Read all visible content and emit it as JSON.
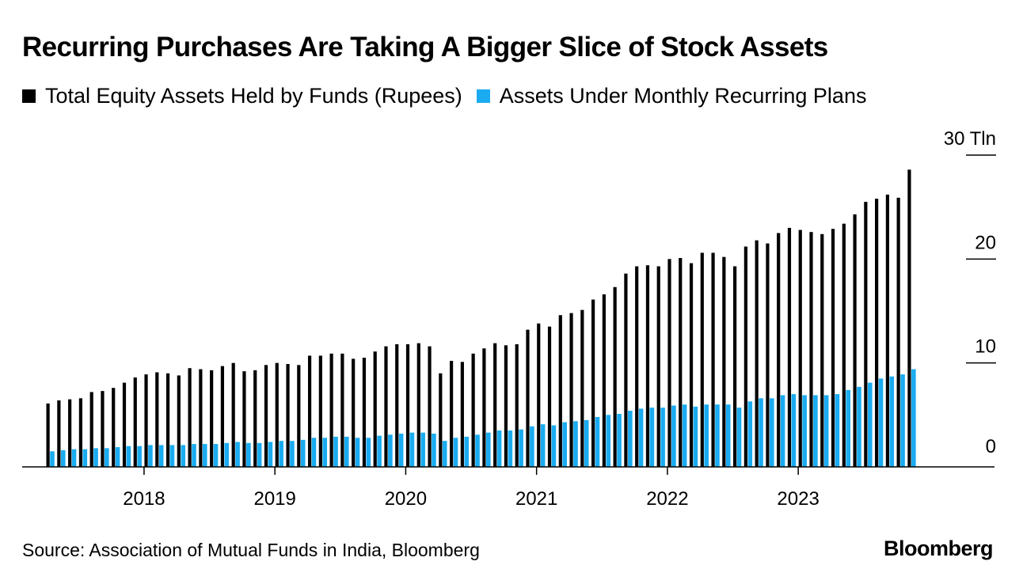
{
  "title": "Recurring Purchases Are Taking A Bigger Slice of Stock Assets",
  "source": "Source: Association of Mutual Funds in India, Bloomberg",
  "brand": "Bloomberg",
  "colors": {
    "total": "#000000",
    "recurring": "#1aabf0",
    "axis": "#000000"
  },
  "chart_data": {
    "type": "bar",
    "title": "Recurring Purchases Are Taking A Bigger Slice of Stock Assets",
    "ylabel": "",
    "y_unit_label": "30 Tln",
    "ylim": [
      0,
      30
    ],
    "y_ticks": [
      {
        "value": 0,
        "label": "0"
      },
      {
        "value": 10,
        "label": "10"
      },
      {
        "value": 20,
        "label": "20"
      },
      {
        "value": 30,
        "label": "30 Tln"
      }
    ],
    "x_ticks": [
      {
        "index": 9,
        "label": "2018"
      },
      {
        "index": 21,
        "label": "2019"
      },
      {
        "index": 33,
        "label": "2020"
      },
      {
        "index": 45,
        "label": "2021"
      },
      {
        "index": 57,
        "label": "2022"
      },
      {
        "index": 69,
        "label": "2023"
      }
    ],
    "grid": false,
    "legend_position": "top-left",
    "categories": [
      "2017-04",
      "2017-05",
      "2017-06",
      "2017-07",
      "2017-08",
      "2017-09",
      "2017-10",
      "2017-11",
      "2017-12",
      "2018-01",
      "2018-02",
      "2018-03",
      "2018-04",
      "2018-05",
      "2018-06",
      "2018-07",
      "2018-08",
      "2018-09",
      "2018-10",
      "2018-11",
      "2018-12",
      "2019-01",
      "2019-02",
      "2019-03",
      "2019-04",
      "2019-05",
      "2019-06",
      "2019-07",
      "2019-08",
      "2019-09",
      "2019-10",
      "2019-11",
      "2019-12",
      "2020-01",
      "2020-02",
      "2020-03",
      "2020-04",
      "2020-05",
      "2020-06",
      "2020-07",
      "2020-08",
      "2020-09",
      "2020-10",
      "2020-11",
      "2020-12",
      "2021-01",
      "2021-02",
      "2021-03",
      "2021-04",
      "2021-05",
      "2021-06",
      "2021-07",
      "2021-08",
      "2021-09",
      "2021-10",
      "2021-11",
      "2021-12",
      "2022-01",
      "2022-02",
      "2022-03",
      "2022-04",
      "2022-05",
      "2022-06",
      "2022-07",
      "2022-08",
      "2022-09",
      "2022-10",
      "2022-11",
      "2022-12",
      "2023-01",
      "2023-02",
      "2023-03",
      "2023-04",
      "2023-05",
      "2023-06",
      "2023-07",
      "2023-08",
      "2023-09",
      "2023-10",
      "2023-11"
    ],
    "series": [
      {
        "name": "Total Equity Assets Held by Funds (Rupees)",
        "color": "#000000",
        "values": [
          6.1,
          6.4,
          6.5,
          6.6,
          7.2,
          7.3,
          7.6,
          8.1,
          8.6,
          8.9,
          9.1,
          9.0,
          8.8,
          9.5,
          9.4,
          9.3,
          9.7,
          10.0,
          9.2,
          9.3,
          9.8,
          10.0,
          9.9,
          9.8,
          10.7,
          10.7,
          10.9,
          10.9,
          10.4,
          10.5,
          11.1,
          11.6,
          11.8,
          11.8,
          11.9,
          11.6,
          9.0,
          10.2,
          10.1,
          10.9,
          11.4,
          11.9,
          11.7,
          11.8,
          13.2,
          13.8,
          13.5,
          14.6,
          14.8,
          15.1,
          16.1,
          16.6,
          17.3,
          18.6,
          19.3,
          19.4,
          19.3,
          20.0,
          20.1,
          19.6,
          20.6,
          20.6,
          20.2,
          19.3,
          21.2,
          21.8,
          21.5,
          22.5,
          23.0,
          22.8,
          22.6,
          22.4,
          22.9,
          23.4,
          24.3,
          25.5,
          25.8,
          26.2,
          25.9,
          28.6
        ]
      },
      {
        "name": "Assets Under Monthly Recurring Plans",
        "color": "#1aabf0",
        "values": [
          1.5,
          1.6,
          1.7,
          1.7,
          1.8,
          1.8,
          1.9,
          2.0,
          2.0,
          2.1,
          2.1,
          2.1,
          2.1,
          2.2,
          2.2,
          2.2,
          2.3,
          2.4,
          2.3,
          2.3,
          2.4,
          2.5,
          2.5,
          2.6,
          2.8,
          2.8,
          2.9,
          2.9,
          2.8,
          2.8,
          3.0,
          3.1,
          3.2,
          3.3,
          3.3,
          3.2,
          2.5,
          2.8,
          2.9,
          3.1,
          3.3,
          3.5,
          3.5,
          3.6,
          3.9,
          4.1,
          4.0,
          4.3,
          4.4,
          4.5,
          4.8,
          5.0,
          5.1,
          5.4,
          5.6,
          5.7,
          5.7,
          5.9,
          6.0,
          5.8,
          6.0,
          6.0,
          6.0,
          5.7,
          6.3,
          6.6,
          6.6,
          6.9,
          7.0,
          6.9,
          6.9,
          6.9,
          7.0,
          7.4,
          7.7,
          8.1,
          8.5,
          8.7,
          8.9,
          9.4
        ]
      }
    ]
  }
}
